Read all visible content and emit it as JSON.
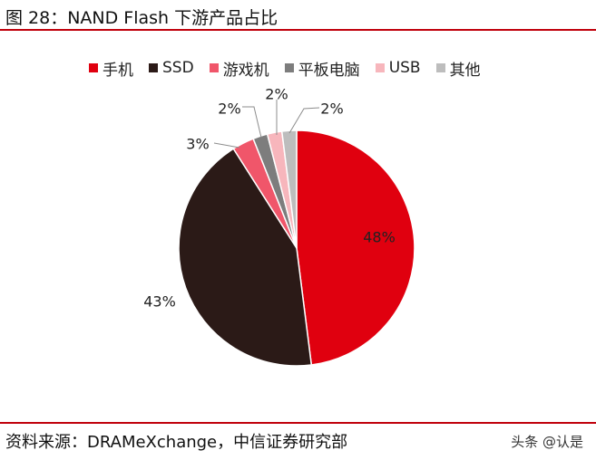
{
  "header": {
    "figure_title": "图 28：NAND Flash 下游产品占比"
  },
  "footer": {
    "source": "资料来源：DRAMeXchange，中信证券研究部",
    "watermark": "头条 @认是"
  },
  "chart_data": {
    "type": "pie",
    "title": "图 28：NAND Flash 下游产品占比",
    "legend_position": "top",
    "slices": [
      {
        "label": "手机",
        "value": 48,
        "display": "48%",
        "color": "#e0000f"
      },
      {
        "label": "SSD",
        "value": 43,
        "display": "43%",
        "color": "#2b1a17"
      },
      {
        "label": "游戏机",
        "value": 3,
        "display": "3%",
        "color": "#f0566a"
      },
      {
        "label": "平板电脑",
        "value": 2,
        "display": "2%",
        "color": "#7d7d7d"
      },
      {
        "label": "USB",
        "value": 2,
        "display": "2%",
        "color": "#f7b6bc"
      },
      {
        "label": "其他",
        "value": 2,
        "display": "2%",
        "color": "#bdbdbd"
      }
    ]
  }
}
